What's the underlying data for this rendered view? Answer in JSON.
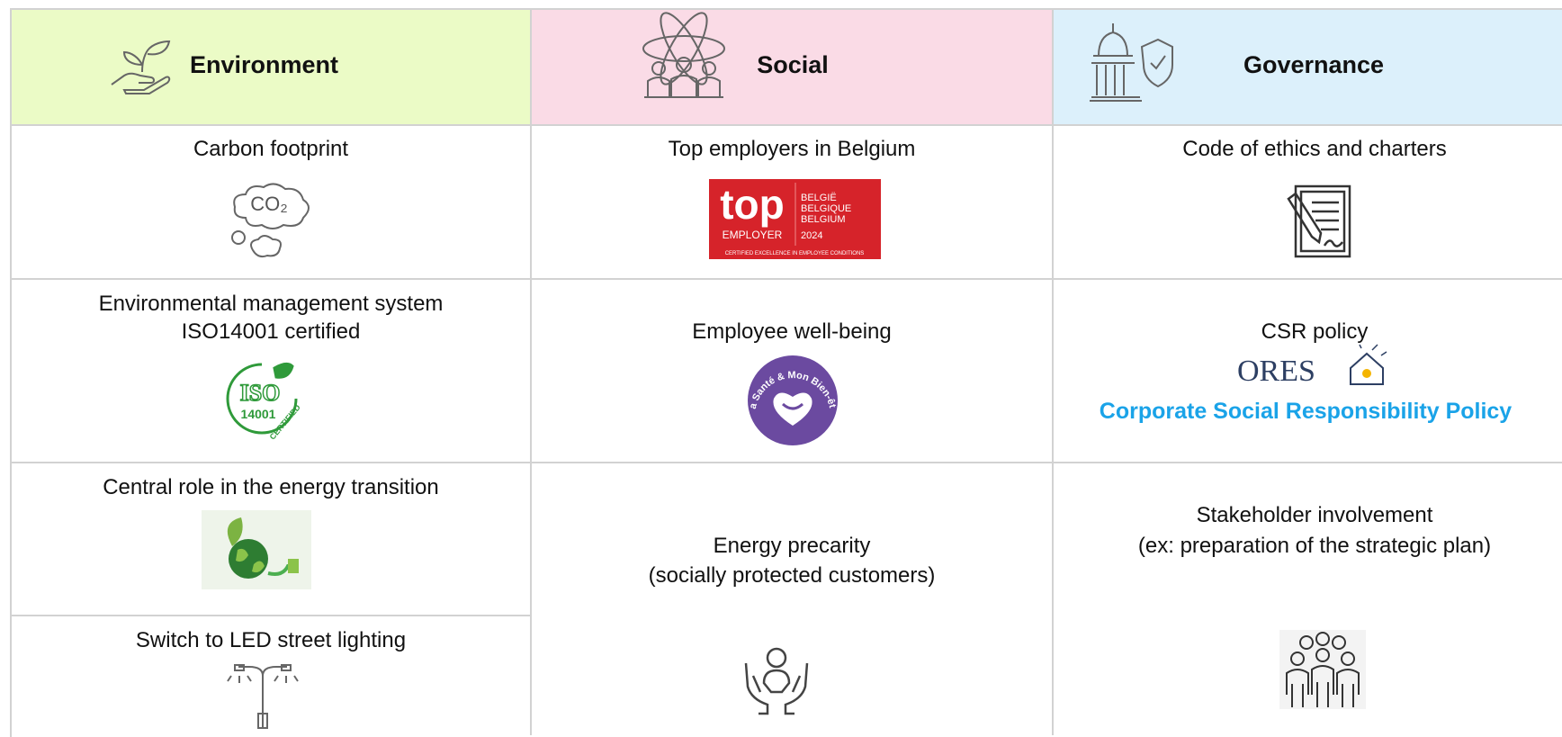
{
  "environment": {
    "header": "Environment",
    "items": [
      {
        "label": [
          "Carbon footprint"
        ],
        "icon_text": "CO₂"
      },
      {
        "label": [
          "Environmental management system",
          "ISO14001 certified"
        ],
        "badge": [
          "ISO",
          "14001",
          "CERTIFIED"
        ]
      },
      {
        "label": [
          "Central role in the energy transition"
        ]
      },
      {
        "label": [
          "Switch to LED street lighting"
        ]
      }
    ]
  },
  "social": {
    "header": "Social",
    "items": [
      {
        "label": [
          "Top employers in Belgium"
        ],
        "logo": [
          "top",
          "EMPLOYER",
          "BELGIË",
          "BELGIQUE",
          "BELGIUM",
          "2024",
          "CERTIFIED EXCELLENCE IN EMPLOYEE CONDITIONS"
        ]
      },
      {
        "label": [
          "Employee well-being"
        ],
        "logo": [
          "Ma Santé & Mon Bien-être"
        ]
      },
      {
        "label": [
          "Energy precarity",
          "(socially protected customers)"
        ]
      }
    ]
  },
  "governance": {
    "header": "Governance",
    "items": [
      {
        "label": [
          "Code of ethics and charters"
        ]
      },
      {
        "label": [
          "CSR policy"
        ],
        "logo": [
          "ORES",
          "Corporate Social Responsibility Policy"
        ]
      },
      {
        "label": [
          "Stakeholder involvement",
          "(ex: preparation of the strategic plan)"
        ]
      }
    ]
  }
}
